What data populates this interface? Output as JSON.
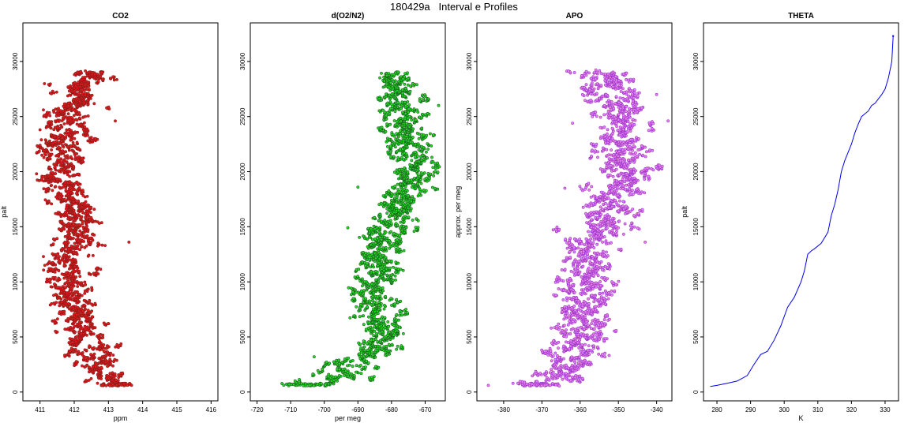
{
  "page_title": "180429a   Interval e Profiles",
  "chart_data": [
    {
      "type": "scatter",
      "title": "CO2",
      "xlabel": "ppm",
      "ylabel": "palt",
      "xlim": [
        410.5,
        416.2
      ],
      "ylim": [
        -800,
        33500
      ],
      "xticks": [
        411,
        412,
        413,
        414,
        415,
        416
      ],
      "yticks": [
        0,
        5000,
        10000,
        15000,
        20000,
        25000,
        30000
      ],
      "fill": "#e41a1c",
      "edge": "#8b1a1a",
      "profile": [
        [
          600,
          413.6
        ],
        [
          900,
          413.0
        ],
        [
          1500,
          412.8
        ],
        [
          2500,
          412.6
        ],
        [
          3500,
          412.5
        ],
        [
          5000,
          412.2
        ],
        [
          7000,
          412.0
        ],
        [
          9000,
          411.9
        ],
        [
          11000,
          411.9
        ],
        [
          13000,
          411.95
        ],
        [
          15000,
          412.1
        ],
        [
          17000,
          412.0
        ],
        [
          19000,
          411.6
        ],
        [
          21000,
          411.7
        ],
        [
          23000,
          411.7
        ],
        [
          25000,
          411.8
        ],
        [
          27000,
          412.1
        ],
        [
          28500,
          412.4
        ],
        [
          29000,
          412.5
        ]
      ],
      "spread": 0.32,
      "tail": [
        [
          410.9,
          19800
        ],
        [
          411.0,
          23800
        ],
        [
          411.1,
          25600
        ],
        [
          413.6,
          13600
        ],
        [
          413.2,
          24600
        ],
        [
          411.1,
          12300
        ],
        [
          412.8,
          29000
        ],
        [
          411.3,
          7900
        ]
      ],
      "series": [
        {
          "name": "CO2",
          "x": [],
          "y": []
        }
      ]
    },
    {
      "type": "scatter",
      "title": "d(O2/N2)",
      "xlabel": "per meg",
      "ylabel": "",
      "xlim": [
        -722,
        -664
      ],
      "ylim": [
        -800,
        33500
      ],
      "xticks": [
        -720,
        -710,
        -700,
        -690,
        -680,
        -670
      ],
      "yticks": [
        0,
        5000,
        10000,
        15000,
        20000,
        25000,
        30000
      ],
      "fill": "#22dd22",
      "edge": "#1b5e20",
      "profile": [
        [
          600,
          -712
        ],
        [
          700,
          -700
        ],
        [
          1200,
          -695
        ],
        [
          2200,
          -694
        ],
        [
          3500,
          -685
        ],
        [
          5000,
          -683
        ],
        [
          7000,
          -684
        ],
        [
          9000,
          -685
        ],
        [
          11000,
          -684
        ],
        [
          13000,
          -684
        ],
        [
          15000,
          -680
        ],
        [
          17000,
          -679
        ],
        [
          19000,
          -674
        ],
        [
          21000,
          -674
        ],
        [
          23000,
          -676
        ],
        [
          25000,
          -676
        ],
        [
          27000,
          -679
        ],
        [
          28500,
          -680
        ],
        [
          29000,
          -681
        ]
      ],
      "spread": 3.2,
      "tail": [
        [
          -666,
          26000
        ],
        [
          -690,
          18600
        ],
        [
          -693,
          14900
        ],
        [
          -703,
          3200
        ],
        [
          -668,
          21300
        ],
        [
          -686,
          4700
        ]
      ],
      "series": [
        {
          "name": "d(O2/N2)",
          "x": [],
          "y": []
        }
      ]
    },
    {
      "type": "scatter",
      "title": "APO",
      "xlabel": "",
      "ylabel": "approx. per meg",
      "xlim": [
        -387,
        -336
      ],
      "ylim": [
        -800,
        33500
      ],
      "xticks": [
        -380,
        -370,
        -360,
        -350,
        -340
      ],
      "yticks": [
        0,
        5000,
        10000,
        15000,
        20000,
        25000,
        30000
      ],
      "fill": "#e882e8",
      "edge": "#9932cc",
      "profile": [
        [
          600,
          -375
        ],
        [
          800,
          -367
        ],
        [
          1500,
          -366
        ],
        [
          3000,
          -362
        ],
        [
          5000,
          -360
        ],
        [
          7000,
          -359
        ],
        [
          9000,
          -359
        ],
        [
          11000,
          -358
        ],
        [
          13000,
          -358
        ],
        [
          15000,
          -353
        ],
        [
          17000,
          -352
        ],
        [
          19000,
          -349
        ],
        [
          21000,
          -350
        ],
        [
          23000,
          -350
        ],
        [
          25000,
          -350
        ],
        [
          27000,
          -352
        ],
        [
          28500,
          -353
        ],
        [
          29000,
          -355
        ]
      ],
      "spread": 3.5,
      "tail": [
        [
          -384,
          600
        ],
        [
          -337,
          24600
        ],
        [
          -340,
          27000
        ],
        [
          -364,
          18500
        ],
        [
          -362,
          24400
        ],
        [
          -343,
          13600
        ]
      ],
      "series": [
        {
          "name": "APO",
          "x": [],
          "y": []
        }
      ]
    },
    {
      "type": "line",
      "title": "THETA",
      "xlabel": "K",
      "ylabel": "palt",
      "xlim": [
        276,
        334
      ],
      "ylim": [
        -800,
        33500
      ],
      "xticks": [
        280,
        290,
        300,
        310,
        320,
        330
      ],
      "yticks": [
        0,
        5000,
        10000,
        15000,
        20000,
        25000,
        30000
      ],
      "color": "#0000ee",
      "series": [
        {
          "name": "THETA",
          "x": [
            278,
            280,
            283,
            286,
            289,
            291,
            293,
            295,
            297,
            299,
            301,
            303,
            305,
            306,
            307,
            308,
            309,
            311,
            313,
            314,
            315,
            316,
            317,
            318,
            320,
            321,
            322,
            323,
            325,
            326,
            327,
            329,
            330,
            331,
            332,
            332.4
          ],
          "y": [
            500,
            600,
            800,
            1000,
            1500,
            2500,
            3400,
            3700,
            4700,
            6000,
            7700,
            8600,
            10000,
            11000,
            12500,
            12800,
            13000,
            13500,
            14500,
            16000,
            17000,
            18300,
            20000,
            21000,
            22500,
            23500,
            24300,
            25000,
            25500,
            26000,
            26200,
            27000,
            27500,
            28500,
            30000,
            32300
          ]
        }
      ]
    }
  ]
}
